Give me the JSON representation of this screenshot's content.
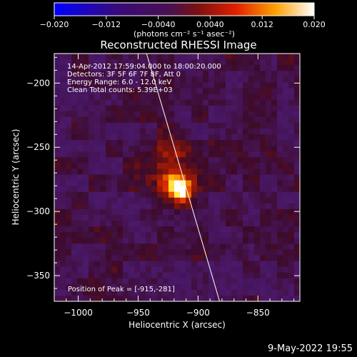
{
  "colorbar": {
    "ticks": [
      "−0.020",
      "−0.012",
      "−0.0040",
      "0.0040",
      "0.012",
      "0.020"
    ],
    "tick_values": [
      -0.02,
      -0.012,
      -0.004,
      0.004,
      0.012,
      0.02
    ],
    "range": [
      -0.02,
      0.02
    ],
    "unit_label": "(photons cm⁻² s⁻¹ asec⁻²)"
  },
  "chart_data": {
    "type": "heatmap",
    "title": "Reconstructed RHESSI Image",
    "xlabel": "Heliocentric X (arcsec)",
    "ylabel": "Heliocentric Y (arcsec)",
    "xlim": [
      -1020,
      -815
    ],
    "ylim": [
      -370,
      -177
    ],
    "x_ticks": [
      -1000,
      -950,
      -900,
      -850
    ],
    "y_ticks": [
      -200,
      -250,
      -300,
      -350
    ],
    "x_tick_labels": [
      "−1000",
      "−950",
      "−900",
      "−850"
    ],
    "y_tick_labels": [
      "−200",
      "−250",
      "−300",
      "−350"
    ],
    "peak": [
      -915,
      -281
    ],
    "limb_line": [
      [
        -943,
        -177
      ],
      [
        -882,
        -370
      ]
    ],
    "colormap": [
      "#0000ff",
      "#3a0a78",
      "#5e2e6e",
      "#7a1a1a",
      "#c81e00",
      "#ff7a00",
      "#ffe03c",
      "#ffffff"
    ],
    "annotations": [
      "14-Apr-2012 17:59:04.000 to 18:00:20.000",
      "Detectors: 3F 5F 6F 7F 8F, Att 0",
      "Energy Range: 6.0 - 12.0 keV",
      "Clean    Total counts: 5.39E+03"
    ],
    "peak_label": "Position of Peak = [-915,-281]"
  },
  "footer": {
    "date": "9-May-2022 19:55"
  }
}
